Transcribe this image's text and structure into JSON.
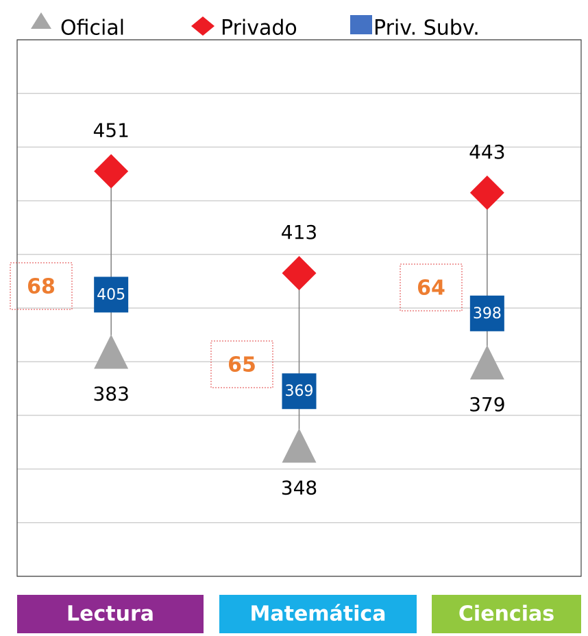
{
  "chart_data": {
    "type": "dot",
    "categories": [
      "Lectura",
      "Matemática",
      "Ciencias"
    ],
    "category_colors": [
      "#8e2a90",
      "#18aee8",
      "#92c83e"
    ],
    "series": [
      {
        "name": "Oficial",
        "marker": "triangle",
        "color": "#a6a6a6",
        "values": [
          383,
          348,
          379
        ]
      },
      {
        "name": "Privado",
        "marker": "diamond",
        "color": "#ed1c24",
        "values": [
          451,
          413,
          443
        ]
      },
      {
        "name": "Priv. Subv.",
        "marker": "square",
        "color": "#0a58a5",
        "values": [
          405,
          369,
          398
        ]
      }
    ],
    "gaps": [
      68,
      65,
      64
    ],
    "ylim": [
      300,
      500
    ],
    "yticks": [
      300,
      320,
      340,
      360,
      380,
      400,
      420,
      440,
      460,
      480,
      500
    ],
    "grid": true
  }
}
